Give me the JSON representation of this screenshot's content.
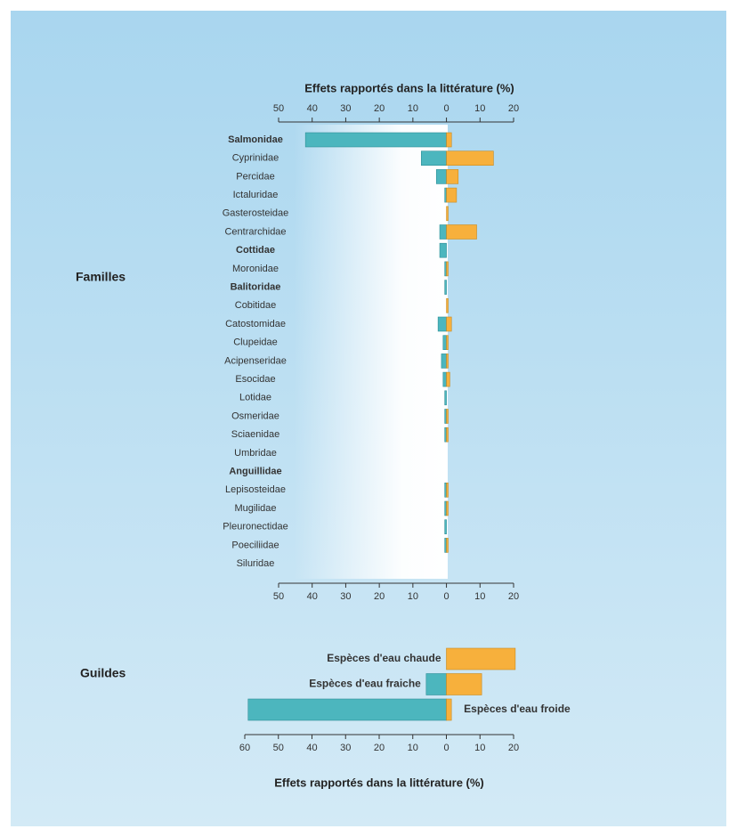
{
  "chart_data": [
    {
      "type": "diverging_bar",
      "title": "Effets rapportés dans la littérature (%)",
      "group_label": "Familles",
      "axis_position": "both",
      "categories": [
        "Salmonidae",
        "Cyprinidae",
        "Percidae",
        "Ictaluridae",
        "Gasterosteidae",
        "Centrarchidae",
        "Cottidae",
        "Moronidae",
        "Balitoridae",
        "Cobitidae",
        "Catostomidae",
        "Clupeidae",
        "Acipenseridae",
        "Esocidae",
        "Lotidae",
        "Osmeridae",
        "Sciaenidae",
        "Umbridae",
        "Anguillidae",
        "Lepisosteidae",
        "Mugilidae",
        "Pleuronectidae",
        "Poeciliidae",
        "Siluridae"
      ],
      "bold": [
        true,
        false,
        false,
        false,
        false,
        false,
        true,
        false,
        true,
        false,
        false,
        false,
        false,
        false,
        false,
        false,
        false,
        false,
        true,
        false,
        false,
        false,
        false,
        false
      ],
      "series": [
        {
          "color": "#4cb6be",
          "values": [
            -42,
            -7.5,
            -3,
            -0.5,
            0,
            -2,
            -2,
            -0.5,
            -0.5,
            0,
            -2.5,
            -1,
            -1.5,
            -1,
            -0.5,
            -0.5,
            -0.5,
            0,
            0,
            -0.5,
            -0.5,
            -0.5,
            -0.5,
            0
          ]
        },
        {
          "color": "#f7b03c",
          "values": [
            1.5,
            14,
            3.5,
            3,
            0.5,
            9,
            0,
            0.5,
            0,
            0.5,
            1.5,
            0.5,
            0.5,
            1,
            0,
            0.5,
            0.5,
            0,
            0,
            0.5,
            0.5,
            0,
            0.5,
            0
          ]
        }
      ],
      "xlim": [
        -50,
        20
      ],
      "xticks": [
        {
          "value": -50,
          "label": "50"
        },
        {
          "value": -40,
          "label": "40"
        },
        {
          "value": -30,
          "label": "30"
        },
        {
          "value": -20,
          "label": "20"
        },
        {
          "value": -10,
          "label": "10"
        },
        0,
        10,
        20
      ]
    },
    {
      "type": "diverging_bar",
      "title": "Effets rapportés dans la littérature (%)",
      "group_label": "Guildes",
      "axis_position": "bottom",
      "categories": [
        "Espèces d'eau  chaude",
        "Espèces d'eau fraiche",
        "Espèces d'eau  froide"
      ],
      "bold": [
        true,
        true,
        true
      ],
      "series": [
        {
          "color": "#4cb6be",
          "values": [
            0,
            -6,
            -59
          ]
        },
        {
          "color": "#f7b03c",
          "values": [
            20.5,
            10.5,
            1.5
          ]
        }
      ],
      "xlim": [
        -60,
        20
      ],
      "xticks": [
        {
          "value": -60,
          "label": "60"
        },
        {
          "value": -50,
          "label": "50"
        },
        {
          "value": -40,
          "label": "40"
        },
        {
          "value": -30,
          "label": "30"
        },
        {
          "value": -20,
          "label": "20"
        },
        {
          "value": -10,
          "label": "10"
        },
        0,
        10,
        20
      ]
    }
  ]
}
